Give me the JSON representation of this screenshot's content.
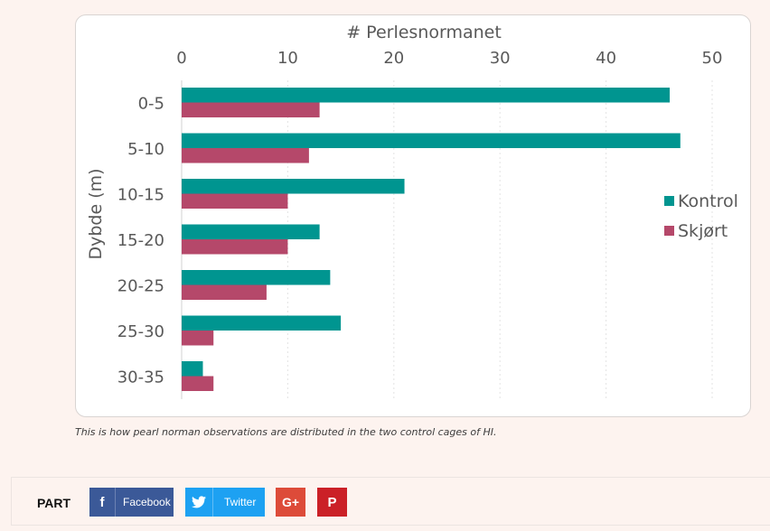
{
  "chart_data": {
    "type": "bar",
    "orientation": "horizontal",
    "title": "# Perlesnormanet",
    "xlabel": "# Perlesnormanet",
    "ylabel": "Dybde (m)",
    "categories": [
      "0-5",
      "5-10",
      "10-15",
      "15-20",
      "20-25",
      "25-30",
      "30-35"
    ],
    "series": [
      {
        "name": "Kontrol",
        "color": "#009590",
        "values": [
          46,
          47,
          21,
          13,
          14,
          15,
          2
        ]
      },
      {
        "name": "Skjørt",
        "color": "#b5486a",
        "values": [
          13,
          12,
          10,
          10,
          8,
          3,
          3
        ]
      }
    ],
    "xlim": [
      0,
      50
    ],
    "xticks": [
      0,
      10,
      20,
      30,
      40,
      50
    ],
    "x_axis_position": "top",
    "grid": "vertical dashed",
    "legend_position": "right"
  },
  "caption": "This is how pearl norman observations are distributed in the two control cages of HI.",
  "share": {
    "label": "PART",
    "facebook_icon": "f",
    "facebook_label": "Facebook",
    "twitter_label": "Twitter",
    "googleplus_icon": "G+",
    "pinterest_icon": "P"
  }
}
